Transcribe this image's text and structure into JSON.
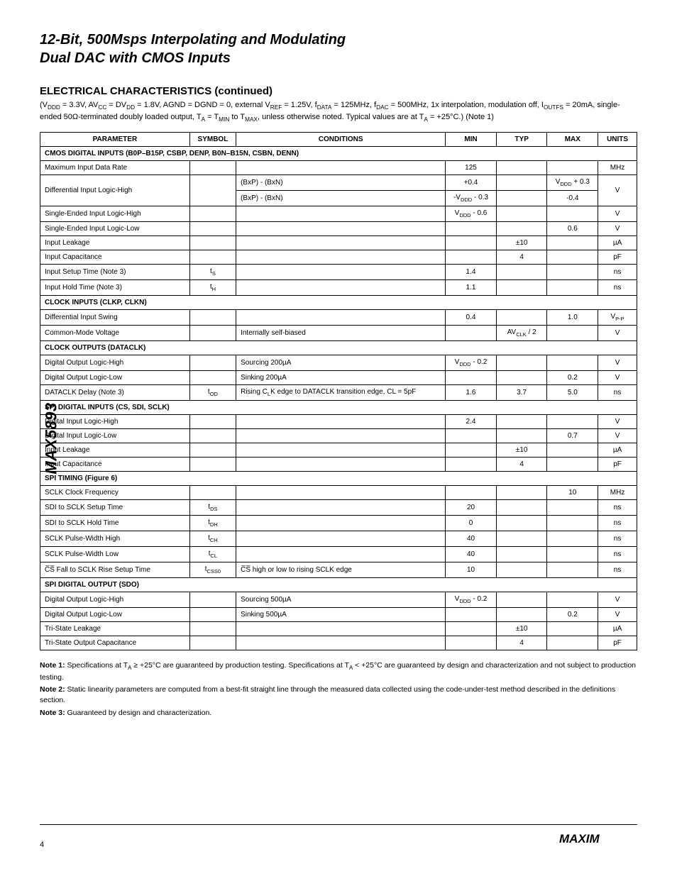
{
  "sidebar": {
    "label": "MAX5893"
  },
  "header": {
    "title": "12-Bit, 500Msps Interpolating and Modulating",
    "subtitle": "Dual DAC with CMOS Inputs"
  },
  "section": {
    "heading": "ELECTRICAL CHARACTERISTICS (continued)",
    "note_prefix": "(V",
    "note_body": " = 3.3V, AV",
    "note_rest": " = DV",
    "note_rest2": " = 1.8V, AGND = DGND = 0, external V",
    "note_rest3": " = 1.25V, f",
    "note_rest4": " = 125MHz, f",
    "note_rest5": " = 500MHz, 1x interpolation, modulation off, I",
    "note_rest6": " = 20mA, single-ended 50Ω-terminated doubly loaded output, T",
    "note_rest7": " = T",
    "note_rest8": " to T",
    "note_rest9": ", unless otherwise noted. Typical values are at T",
    "note_rest10": " = +25°C.) (Note 1)"
  },
  "table": {
    "headers": [
      "PARAMETER",
      "SYMBOL",
      "CONDITIONS",
      "MIN",
      "TYP",
      "MAX",
      "UNITS"
    ],
    "groups": [
      {
        "title": "CMOS DIGITAL INPUTS (B0P–B15P, CSBP, DENP, B0N–B15N, CSBN, DENN)",
        "rows": [
          {
            "p": "Maximum Input Data Rate",
            "s": "",
            "c": "",
            "min": "125",
            "typ": "",
            "max": "",
            "u": "MHz"
          },
          {
            "p": "Differential Input Logic-High",
            "s": "",
            "c": "(BxP) - (BxN)",
            "min": "+0.4",
            "typ": "",
            "max": "VDDD + 0.3",
            "u": "V",
            "rowspan": 2
          },
          {
            "p": "",
            "s": "",
            "c": "(BxP) - (BxN)",
            "min": "-VDDD - 0.3",
            "typ": "",
            "max": "-0.4",
            "u": "",
            "hide_first": true
          },
          {
            "p": "Single-Ended Input Logic-High",
            "s": "",
            "c": "",
            "min": "VDDD - 0.6",
            "typ": "",
            "max": "",
            "u": "V"
          },
          {
            "p": "Single-Ended Input Logic-Low",
            "s": "",
            "c": "",
            "min": "",
            "typ": "",
            "max": "0.6",
            "u": "V"
          },
          {
            "p": "Input Leakage",
            "s": "",
            "c": "",
            "min": "",
            "typ": "±10",
            "max": "",
            "u": "µA"
          },
          {
            "p": "Input Capacitance",
            "s": "",
            "c": "",
            "min": "",
            "typ": "4",
            "max": "",
            "u": "pF"
          },
          {
            "p": "Input Setup Time (Note 3)",
            "s": "tS",
            "c": "",
            "min": "1.4",
            "typ": "",
            "max": "",
            "u": "ns"
          },
          {
            "p": "Input Hold Time (Note 3)",
            "s": "tH",
            "c": "",
            "min": "1.1",
            "typ": "",
            "max": "",
            "u": "ns"
          }
        ]
      },
      {
        "title": "CLOCK INPUTS (CLKP, CLKN)",
        "rows": [
          {
            "p": "Differential Input Swing",
            "s": "",
            "c": "",
            "min": "0.4",
            "typ": "",
            "max": "1.0",
            "u": "VP-P"
          },
          {
            "p": "Common-Mode Voltage",
            "s": "",
            "c": "Internally self-biased",
            "min": "",
            "typ": "AVCLK / 2",
            "max": "",
            "u": "V"
          }
        ]
      },
      {
        "title": "CLOCK OUTPUTS (DATACLK)",
        "rows": [
          {
            "p": "Digital Output Logic-High",
            "s": "",
            "c": "Sourcing 200µA",
            "min": "VDDD - 0.2",
            "typ": "",
            "max": "",
            "u": "V"
          },
          {
            "p": "Digital Output Logic-Low",
            "s": "",
            "c": "Sinking 200µA",
            "min": "",
            "typ": "",
            "max": "0.2",
            "u": "V"
          },
          {
            "p": "DATACLK Delay (Note 3)",
            "s": "tOD",
            "c": "Rising CLK edge to DATACLK transition edge, CL = 5pF",
            "min": "1.6",
            "typ": "3.7",
            "max": "5.0",
            "u": "ns"
          }
        ]
      },
      {
        "title": "SPI DIGITAL INPUTS (CS, SDI, SCLK)",
        "rows": [
          {
            "p": "Digital Input Logic-High",
            "s": "",
            "c": "",
            "min": "2.4",
            "typ": "",
            "max": "",
            "u": "V"
          },
          {
            "p": "Digital Input Logic-Low",
            "s": "",
            "c": "",
            "min": "",
            "typ": "",
            "max": "0.7",
            "u": "V"
          },
          {
            "p": "Input Leakage",
            "s": "",
            "c": "",
            "min": "",
            "typ": "±10",
            "max": "",
            "u": "µA"
          },
          {
            "p": "Input Capacitance",
            "s": "",
            "c": "",
            "min": "",
            "typ": "4",
            "max": "",
            "u": "pF"
          }
        ]
      },
      {
        "title": "SPI TIMING (Figure 6)",
        "rows": [
          {
            "p": "SCLK Clock Frequency",
            "s": "",
            "c": "",
            "min": "",
            "typ": "",
            "max": "10",
            "u": "MHz"
          },
          {
            "p": "SDI to SCLK Setup Time",
            "s": "tDS",
            "c": "",
            "min": "20",
            "typ": "",
            "max": "",
            "u": "ns"
          },
          {
            "p": "SDI to SCLK Hold Time",
            "s": "tDH",
            "c": "",
            "min": "0",
            "typ": "",
            "max": "",
            "u": "ns"
          },
          {
            "p": "SCLK Pulse-Width High",
            "s": "tCH",
            "c": "",
            "min": "40",
            "typ": "",
            "max": "",
            "u": "ns"
          },
          {
            "p": "SCLK Pulse-Width Low",
            "s": "tCL",
            "c": "",
            "min": "40",
            "typ": "",
            "max": "",
            "u": "ns"
          },
          {
            "p": "C̅S̅ Fall to SCLK Rise Setup Time",
            "s": "tCSS0",
            "c": "C̅S̅ high or low to rising SCLK edge",
            "min": "10",
            "typ": "",
            "max": "",
            "u": "ns"
          }
        ]
      },
      {
        "title": "SPI DIGITAL OUTPUT (SDO)",
        "rows": [
          {
            "p": "Digital Output Logic-High",
            "s": "",
            "c": "Sourcing 500µA",
            "min": "VDDD - 0.2",
            "typ": "",
            "max": "",
            "u": "V"
          },
          {
            "p": "Digital Output Logic-Low",
            "s": "",
            "c": "Sinking 500µA",
            "min": "",
            "typ": "",
            "max": "0.2",
            "u": "V"
          },
          {
            "p": "Tri-State Leakage",
            "s": "",
            "c": "",
            "min": "",
            "typ": "±10",
            "max": "",
            "u": "µA"
          },
          {
            "p": "Tri-State Output Capacitance",
            "s": "",
            "c": "",
            "min": "",
            "typ": "4",
            "max": "",
            "u": "pF"
          }
        ]
      }
    ]
  },
  "notes": [
    {
      "bold": "Note 1:",
      "text": " Specifications at TA ≥ +25°C are guaranteed by production testing. Specifications at TA < +25°C are guaranteed by design and characterization and not subject to production testing."
    },
    {
      "bold": "Note 2:",
      "text": " Static linearity parameters are computed from a best-fit straight line through the measured data collected using the code-under-test method described in the definitions section."
    },
    {
      "bold": "Note 3:",
      "text": " Guaranteed by design and characterization."
    }
  ],
  "footer": {
    "page": "4"
  }
}
